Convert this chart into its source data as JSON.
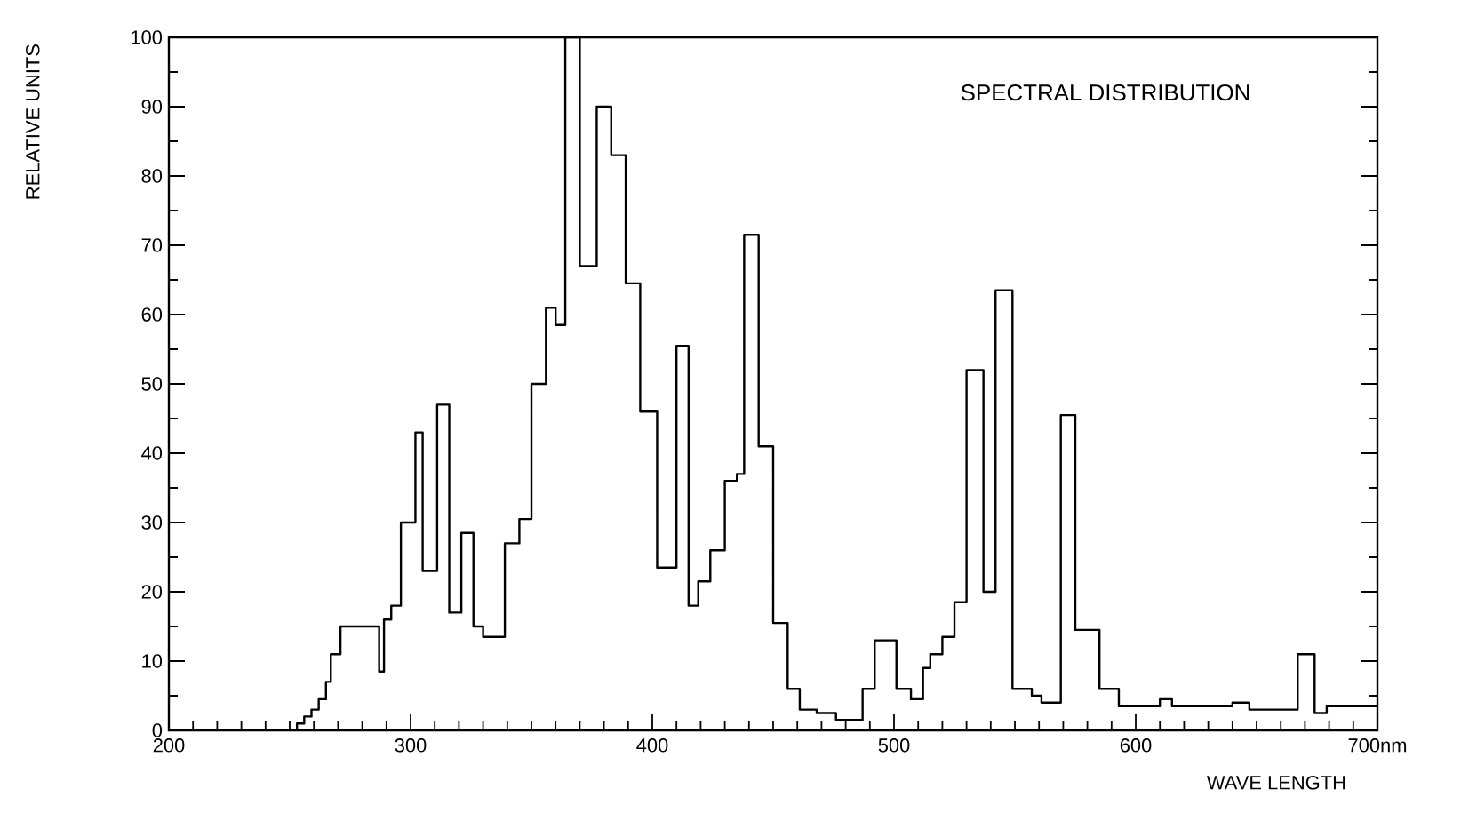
{
  "chart_data": {
    "type": "step",
    "title": "SPECTRAL DISTRIBUTION",
    "xlabel": "WAVE LENGTH",
    "ylabel": "RELATIVE UNITS",
    "x": [
      245,
      253,
      256,
      259,
      262,
      265,
      267,
      271,
      287,
      289,
      292,
      296,
      302,
      305,
      311,
      316,
      321,
      326,
      330,
      339,
      345,
      350,
      356,
      360,
      364,
      370,
      377,
      383,
      389,
      395,
      402,
      410,
      415,
      419,
      424,
      430,
      435,
      438,
      444,
      450,
      456,
      461,
      468,
      476,
      487,
      492,
      501,
      507,
      512,
      515,
      520,
      525,
      530,
      537,
      542,
      549,
      557,
      561,
      569,
      575,
      585,
      593,
      610,
      615,
      640,
      647,
      667,
      674,
      679,
      700
    ],
    "series": [
      {
        "color": "#000000",
        "values": [
          0,
          1,
          2,
          3,
          4.5,
          7,
          11,
          15,
          8.5,
          16,
          18,
          30,
          43,
          23,
          47,
          17,
          28.5,
          15,
          13.5,
          27,
          30.5,
          50,
          61,
          58.5,
          100,
          67,
          90,
          83,
          64.5,
          46,
          23.5,
          55.5,
          18,
          21.5,
          26,
          36,
          37,
          71.5,
          41,
          15.5,
          6,
          3,
          2.5,
          1.5,
          6,
          13,
          6,
          4.5,
          9,
          11,
          13.5,
          18.5,
          52,
          20,
          63.5,
          6,
          5,
          4,
          45.5,
          14.5,
          6,
          3.5,
          4.5,
          3.5,
          4,
          3,
          11,
          2.5,
          3.5,
          3.5
        ]
      }
    ],
    "xlim": [
      200,
      700
    ],
    "ylim": [
      0,
      100
    ],
    "xticks": [
      200,
      300,
      400,
      500,
      600,
      {
        "value": 700,
        "label": "700nm"
      }
    ],
    "yticks": [
      0,
      10,
      20,
      30,
      40,
      50,
      60,
      70,
      80,
      90,
      100
    ],
    "grid": false
  }
}
